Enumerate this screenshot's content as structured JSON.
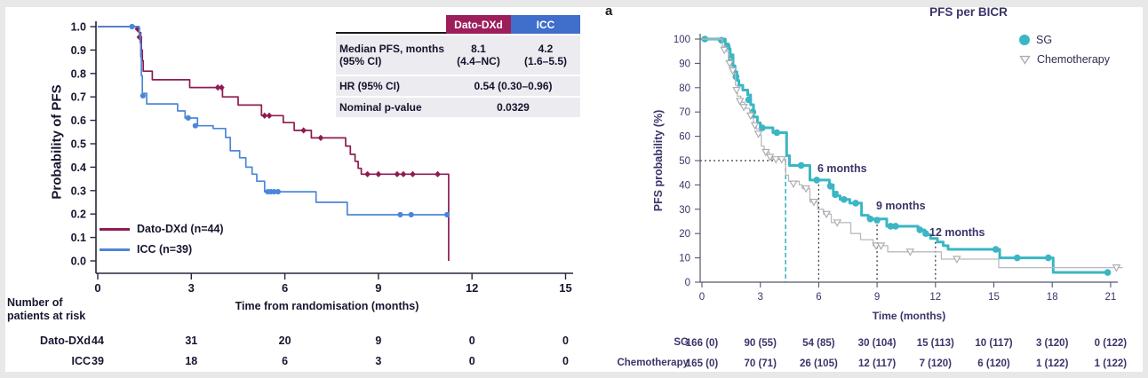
{
  "left_panel": {
    "y_axis_title": "Probability of PFS",
    "x_axis_title": "Time from randomisation (months)",
    "legend": [
      {
        "label": "Dato-DXd (n=44)",
        "color": "#8e1b51"
      },
      {
        "label": "ICC (n=39)",
        "color": "#4c86d9"
      }
    ],
    "stats_table": {
      "header": {
        "col1": "",
        "col2": "Dato-DXd",
        "col3": "ICC"
      },
      "row_median": {
        "label_line1": "Median PFS, months",
        "label_line2": "(95% CI)",
        "dato_line1": "8.1",
        "dato_line2": "(4.4–NC)",
        "icc_line1": "4.2",
        "icc_line2": "(1.6–5.5)"
      },
      "row_hr": {
        "label": "HR (95% CI)",
        "value": "0.54 (0.30–0.96)"
      },
      "row_p": {
        "label": "Nominal p-value",
        "value": "0.0329"
      }
    },
    "risk_table": {
      "header_line1": "Number of",
      "header_line2": "patients at risk",
      "times": [
        0,
        3,
        6,
        9,
        12,
        15
      ],
      "rows": [
        {
          "label": "Dato-DXd",
          "values": [
            "44",
            "31",
            "20",
            "9",
            "0",
            "0"
          ]
        },
        {
          "label": "ICC",
          "values": [
            "39",
            "18",
            "6",
            "3",
            "0",
            "0"
          ]
        }
      ]
    }
  },
  "right_panel": {
    "panel_label": "a",
    "title": "PFS per BICR",
    "y_axis_title": "PFS probability (%)",
    "x_axis_title": "Time (months)",
    "legend": [
      {
        "label": "SG",
        "color": "#3ab6c4",
        "marker": "circle"
      },
      {
        "label": "Chemotherapy",
        "color": "#a9a9af",
        "marker": "triangle-open"
      }
    ],
    "annotations": [
      {
        "label": "6 months"
      },
      {
        "label": "9 months"
      },
      {
        "label": "12 months"
      }
    ],
    "risk_table": {
      "times": [
        0,
        3,
        6,
        9,
        12,
        15,
        18,
        21
      ],
      "rows": [
        {
          "label": "SG",
          "values": [
            "166 (0)",
            "90 (55)",
            "54 (85)",
            "30 (104)",
            "15 (113)",
            "10 (117)",
            "3 (120)",
            "0 (122)"
          ]
        },
        {
          "label": "Chemotherapy",
          "values": [
            "165 (0)",
            "70 (71)",
            "26 (105)",
            "12 (117)",
            "7 (120)",
            "6 (120)",
            "1 (122)",
            "1 (122)"
          ]
        }
      ]
    }
  },
  "chart_data": [
    {
      "type": "line",
      "subtype": "kaplan-meier",
      "title": "",
      "xlabel": "Time from randomisation (months)",
      "ylabel": "Probability of PFS",
      "xlim": [
        0,
        15
      ],
      "ylim": [
        0,
        1.0
      ],
      "xticks": [
        0,
        3,
        6,
        9,
        12,
        15
      ],
      "ytick_labels": [
        "0.0",
        "0.1",
        "0.2",
        "0.3",
        "0.4",
        "0.5",
        "0.6",
        "0.7",
        "0.8",
        "0.9",
        "1.0"
      ],
      "grid": false,
      "legend_position": "lower-left",
      "series": [
        {
          "name": "Dato-DXd (n=44)",
          "color": "#8e1b51",
          "marker": "diamond",
          "median_pfs_months": 8.1,
          "ci95": "4.4–NC",
          "steps": [
            [
              0,
              1.0
            ],
            [
              1.25,
              1.0
            ],
            [
              1.32,
              0.975
            ],
            [
              1.38,
              0.95
            ],
            [
              1.4,
              0.9
            ],
            [
              1.43,
              0.855
            ],
            [
              1.46,
              0.81
            ],
            [
              1.75,
              0.773
            ],
            [
              2.95,
              0.74
            ],
            [
              4.0,
              0.7
            ],
            [
              4.5,
              0.665
            ],
            [
              5.25,
              0.62
            ],
            [
              5.95,
              0.59
            ],
            [
              6.3,
              0.557
            ],
            [
              6.85,
              0.525
            ],
            [
              7.95,
              0.49
            ],
            [
              8.1,
              0.455
            ],
            [
              8.25,
              0.425
            ],
            [
              8.35,
              0.395
            ],
            [
              8.45,
              0.37
            ],
            [
              11.25,
              0.37
            ],
            [
              11.25,
              0.0
            ]
          ],
          "censor_marks": [
            [
              1.28,
              0.99
            ],
            [
              1.34,
              0.955
            ],
            [
              3.85,
              0.74
            ],
            [
              3.97,
              0.74
            ],
            [
              5.35,
              0.62
            ],
            [
              5.5,
              0.62
            ],
            [
              6.6,
              0.557
            ],
            [
              7.15,
              0.525
            ],
            [
              8.65,
              0.37
            ],
            [
              9.0,
              0.37
            ],
            [
              9.6,
              0.37
            ],
            [
              9.8,
              0.37
            ],
            [
              10.1,
              0.37
            ],
            [
              10.9,
              0.37
            ]
          ]
        },
        {
          "name": "ICC (n=39)",
          "color": "#4c86d9",
          "marker": "circle",
          "median_pfs_months": 4.2,
          "ci95": "1.6–5.5",
          "steps": [
            [
              0,
              1.0
            ],
            [
              1.28,
              1.0
            ],
            [
              1.33,
              0.97
            ],
            [
              1.36,
              0.93
            ],
            [
              1.38,
              0.87
            ],
            [
              1.4,
              0.79
            ],
            [
              1.43,
              0.715
            ],
            [
              1.57,
              0.67
            ],
            [
              2.56,
              0.64
            ],
            [
              2.8,
              0.61
            ],
            [
              3.2,
              0.577
            ],
            [
              3.7,
              0.565
            ],
            [
              4.1,
              0.527
            ],
            [
              4.25,
              0.47
            ],
            [
              4.55,
              0.44
            ],
            [
              4.75,
              0.4
            ],
            [
              4.95,
              0.37
            ],
            [
              5.1,
              0.34
            ],
            [
              5.35,
              0.295
            ],
            [
              7.0,
              0.25
            ],
            [
              8.0,
              0.197
            ],
            [
              11.2,
              0.197
            ]
          ],
          "censor_marks": [
            [
              1.1,
              1.0
            ],
            [
              1.45,
              0.705
            ],
            [
              2.9,
              0.61
            ],
            [
              3.13,
              0.577
            ],
            [
              5.45,
              0.295
            ],
            [
              5.55,
              0.295
            ],
            [
              5.65,
              0.295
            ],
            [
              5.78,
              0.295
            ],
            [
              9.7,
              0.197
            ],
            [
              10.05,
              0.197
            ],
            [
              11.2,
              0.197
            ]
          ]
        }
      ],
      "stats": {
        "hr_95ci": "0.54 (0.30–0.96)",
        "nominal_p_value": "0.0329"
      }
    },
    {
      "type": "line",
      "subtype": "kaplan-meier",
      "title": "PFS per BICR",
      "xlabel": "Time (months)",
      "ylabel": "PFS probability (%)",
      "xlim": [
        0,
        21
      ],
      "ylim": [
        0,
        100
      ],
      "xticks": [
        0,
        3,
        6,
        9,
        12,
        15,
        18,
        21
      ],
      "yticks": [
        0,
        10,
        20,
        30,
        40,
        50,
        60,
        70,
        80,
        90,
        100
      ],
      "grid": false,
      "legend_position": "upper-right",
      "median_line": {
        "x": 4.3,
        "y": 50,
        "color": "#3ab6c4"
      },
      "reference_lines": [
        {
          "x": 6,
          "top": 42,
          "label": "6 months"
        },
        {
          "x": 9,
          "top": 25.5,
          "label": "9 months"
        },
        {
          "x": 12,
          "top": 16.5,
          "label": "12 months"
        }
      ],
      "series": [
        {
          "name": "SG",
          "color": "#3ab6c4",
          "marker": "circle",
          "steps": [
            [
              0,
              100
            ],
            [
              0.9,
              100
            ],
            [
              1.2,
              98
            ],
            [
              1.35,
              96
            ],
            [
              1.45,
              93.5
            ],
            [
              1.6,
              89
            ],
            [
              1.7,
              86.5
            ],
            [
              1.8,
              83
            ],
            [
              1.9,
              81
            ],
            [
              2.1,
              79
            ],
            [
              2.35,
              77
            ],
            [
              2.5,
              73
            ],
            [
              2.65,
              68
            ],
            [
              2.85,
              65.5
            ],
            [
              3.0,
              63.5
            ],
            [
              3.65,
              61.5
            ],
            [
              4.35,
              52
            ],
            [
              4.5,
              48
            ],
            [
              5.55,
              42
            ],
            [
              6.55,
              40
            ],
            [
              6.75,
              37
            ],
            [
              6.95,
              35.5
            ],
            [
              7.1,
              34
            ],
            [
              7.6,
              32.5
            ],
            [
              8.2,
              27.5
            ],
            [
              8.55,
              26
            ],
            [
              9.5,
              23
            ],
            [
              11.1,
              21.5
            ],
            [
              11.45,
              19.5
            ],
            [
              11.75,
              18
            ],
            [
              12.1,
              16.5
            ],
            [
              12.4,
              15
            ],
            [
              12.65,
              13.5
            ],
            [
              15.3,
              10
            ],
            [
              18.05,
              4
            ],
            [
              20.9,
              4
            ]
          ],
          "censor_marks": [
            [
              0.15,
              100
            ],
            [
              1.0,
              99.5
            ],
            [
              1.3,
              97
            ],
            [
              1.5,
              92
            ],
            [
              1.75,
              84.5
            ],
            [
              2.4,
              75
            ],
            [
              2.62,
              70
            ],
            [
              3.1,
              63.5
            ],
            [
              3.85,
              61.5
            ],
            [
              5.1,
              48
            ],
            [
              5.9,
              42
            ],
            [
              6.6,
              39.5
            ],
            [
              6.85,
              36
            ],
            [
              7.3,
              34
            ],
            [
              7.9,
              32.5
            ],
            [
              8.65,
              26
            ],
            [
              9.0,
              25.5
            ],
            [
              9.7,
              23
            ],
            [
              9.95,
              23
            ],
            [
              11.2,
              21.5
            ],
            [
              11.5,
              20
            ],
            [
              15.1,
              13.5
            ],
            [
              16.2,
              10
            ],
            [
              17.8,
              10
            ],
            [
              20.85,
              4
            ]
          ]
        },
        {
          "name": "Chemotherapy",
          "color": "#b9b9bd",
          "marker": "triangle-open",
          "steps": [
            [
              0,
              100
            ],
            [
              0.8,
              100
            ],
            [
              1.05,
              97
            ],
            [
              1.2,
              95
            ],
            [
              1.35,
              92
            ],
            [
              1.5,
              88
            ],
            [
              1.62,
              86
            ],
            [
              1.72,
              81
            ],
            [
              1.82,
              76.5
            ],
            [
              2.0,
              74
            ],
            [
              2.2,
              71.5
            ],
            [
              2.45,
              70
            ],
            [
              2.55,
              67.5
            ],
            [
              2.65,
              65
            ],
            [
              2.8,
              63
            ],
            [
              2.95,
              60.5
            ],
            [
              3.05,
              56
            ],
            [
              3.2,
              53.5
            ],
            [
              3.45,
              52
            ],
            [
              3.6,
              50.5
            ],
            [
              4.3,
              44
            ],
            [
              4.45,
              41.5
            ],
            [
              5.0,
              40
            ],
            [
              5.15,
              38.5
            ],
            [
              5.55,
              33
            ],
            [
              5.95,
              30
            ],
            [
              6.25,
              28
            ],
            [
              6.65,
              24.5
            ],
            [
              7.65,
              20
            ],
            [
              8.15,
              17.5
            ],
            [
              8.8,
              15
            ],
            [
              9.55,
              12.5
            ],
            [
              12.3,
              9.5
            ],
            [
              15.25,
              6
            ],
            [
              21.6,
              6
            ]
          ],
          "censor_marks": [
            [
              1.15,
              95.5
            ],
            [
              1.42,
              90
            ],
            [
              1.58,
              87
            ],
            [
              1.78,
              79
            ],
            [
              1.95,
              74.5
            ],
            [
              2.15,
              72
            ],
            [
              2.5,
              68.5
            ],
            [
              2.72,
              64.5
            ],
            [
              2.9,
              61
            ],
            [
              3.28,
              53.5
            ],
            [
              3.5,
              51.5
            ],
            [
              3.8,
              50.5
            ],
            [
              4.1,
              50.5
            ],
            [
              4.7,
              40.5
            ],
            [
              5.35,
              38.5
            ],
            [
              5.75,
              33
            ],
            [
              6.4,
              28
            ],
            [
              6.95,
              24.5
            ],
            [
              8.95,
              15
            ],
            [
              9.2,
              15
            ],
            [
              10.7,
              12.5
            ],
            [
              13.1,
              9.5
            ],
            [
              21.3,
              6
            ]
          ]
        }
      ]
    }
  ]
}
